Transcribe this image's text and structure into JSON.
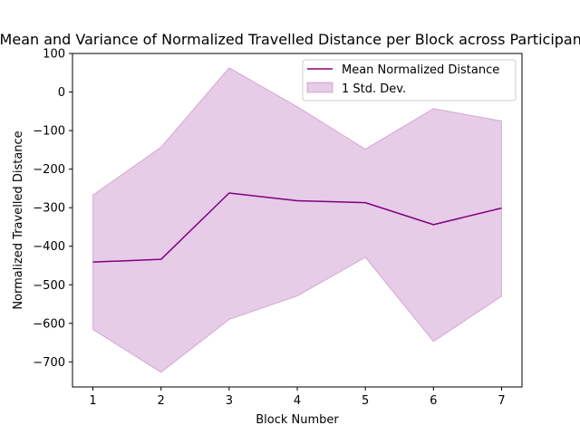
{
  "chart_data": {
    "type": "line",
    "title": "Mean and Variance of Normalized Travelled Distance per Block across Participants",
    "xlabel": "Block Number",
    "ylabel": "Normalized Travelled Distance",
    "x": [
      1,
      2,
      3,
      4,
      5,
      6,
      7
    ],
    "xlim": [
      0.7,
      7.3
    ],
    "ylim": [
      -765,
      100
    ],
    "xticks": [
      1,
      2,
      3,
      4,
      5,
      6,
      7
    ],
    "yticks": [
      100,
      0,
      -100,
      -200,
      -300,
      -400,
      -500,
      -600,
      -700
    ],
    "series": [
      {
        "name": "Mean Normalized Distance",
        "kind": "line",
        "color": "#800080",
        "values": [
          -441,
          -434,
          -262,
          -282,
          -287,
          -344,
          -301
        ]
      },
      {
        "name": "1 Std. Dev.",
        "kind": "band",
        "color": "#800080",
        "opacity": 0.2,
        "upper": [
          -267,
          -143,
          63,
          -38,
          -148,
          -43,
          -75
        ],
        "lower": [
          -616,
          -727,
          -590,
          -529,
          -429,
          -647,
          -530
        ]
      }
    ],
    "grid": false,
    "legend_position": "top-right"
  }
}
